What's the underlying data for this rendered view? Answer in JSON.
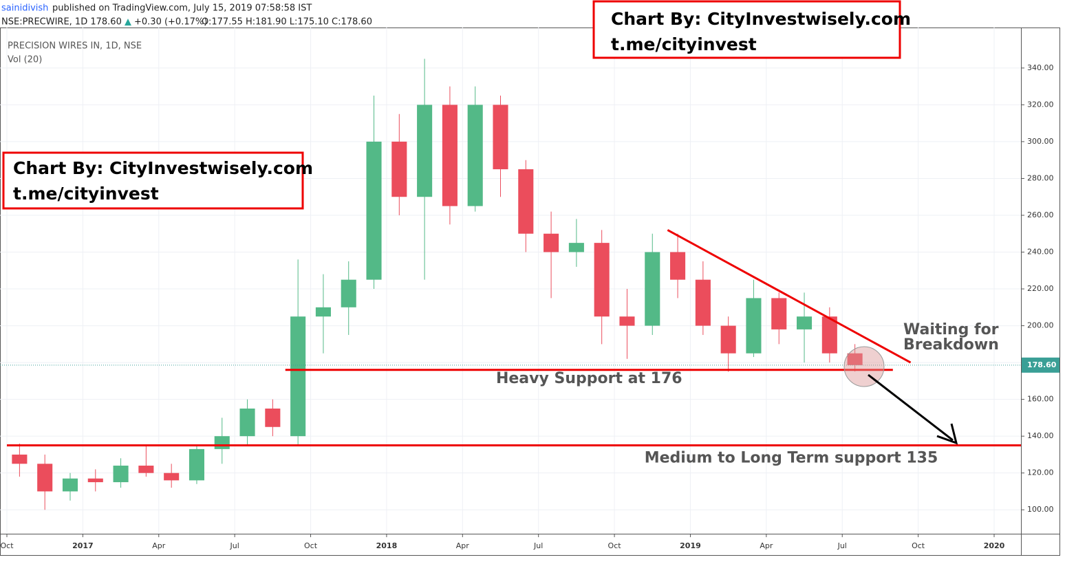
{
  "header": {
    "user": "sainidivish",
    "published": "published on TradingView.com, July 15, 2019 07:58:58 IST",
    "quote": "NSE:PRECWIRE, 1D  178.60",
    "change": "+0.30 (+0.17%)",
    "ohlc": "O:177.55  H:181.90  L:175.10  C:178.60"
  },
  "chart_data": {
    "type": "candlestick",
    "title": "PRECISION WIRES IN, 1D, NSE",
    "subtitle": "Vol (20)",
    "x": [
      "2016-10",
      "2016-11",
      "2016-12",
      "2017-01",
      "2017-02",
      "2017-03",
      "2017-04",
      "2017-05",
      "2017-06",
      "2017-07",
      "2017-08",
      "2017-09",
      "2017-10",
      "2017-11",
      "2017-12",
      "2018-01",
      "2018-02",
      "2018-03",
      "2018-04",
      "2018-05",
      "2018-06",
      "2018-07",
      "2018-08",
      "2018-09",
      "2018-10",
      "2018-11",
      "2018-12",
      "2019-01",
      "2019-02",
      "2019-03",
      "2019-04",
      "2019-05",
      "2019-06",
      "2019-07"
    ],
    "open": [
      130,
      125,
      110,
      117,
      115,
      124,
      120,
      116,
      133,
      140,
      155,
      140,
      205,
      210,
      225,
      300,
      270,
      320,
      265,
      320,
      285,
      250,
      240,
      245,
      205,
      200,
      240,
      225,
      200,
      185,
      215,
      198,
      205,
      185
    ],
    "high": [
      136,
      130,
      120,
      122,
      128,
      135,
      125,
      135,
      150,
      160,
      160,
      236,
      228,
      235,
      325,
      315,
      345,
      330,
      330,
      325,
      290,
      262,
      258,
      252,
      220,
      250,
      250,
      235,
      205,
      225,
      218,
      218,
      210,
      190
    ],
    "low": [
      118,
      100,
      105,
      110,
      112,
      118,
      112,
      114,
      125,
      135,
      140,
      135,
      185,
      195,
      220,
      260,
      225,
      255,
      262,
      270,
      240,
      215,
      232,
      190,
      182,
      195,
      215,
      195,
      175,
      183,
      190,
      180,
      180,
      175.1
    ],
    "close": [
      125,
      110,
      117,
      115,
      124,
      120,
      116,
      133,
      140,
      155,
      145,
      205,
      210,
      225,
      300,
      270,
      320,
      265,
      320,
      285,
      250,
      240,
      245,
      205,
      200,
      240,
      225,
      200,
      185,
      215,
      198,
      205,
      185,
      178.6
    ],
    "up_color": "#53b987",
    "down_color": "#eb4d5c",
    "xlim": [
      "2016-10",
      "2020-01"
    ],
    "xticks": [
      {
        "value": "2016-10",
        "label": "Oct"
      },
      {
        "value": "2017-01",
        "label": "2017"
      },
      {
        "value": "2017-04",
        "label": "Apr"
      },
      {
        "value": "2017-07",
        "label": "Jul"
      },
      {
        "value": "2017-10",
        "label": "Oct"
      },
      {
        "value": "2018-01",
        "label": "2018"
      },
      {
        "value": "2018-04",
        "label": "Apr"
      },
      {
        "value": "2018-07",
        "label": "Jul"
      },
      {
        "value": "2018-10",
        "label": "Oct"
      },
      {
        "value": "2019-01",
        "label": "2019"
      },
      {
        "value": "2019-04",
        "label": "Apr"
      },
      {
        "value": "2019-07",
        "label": "Jul"
      },
      {
        "value": "2019-10",
        "label": "Oct"
      },
      {
        "value": "2020-01",
        "label": "2020"
      }
    ],
    "ylim": [
      87,
      362
    ],
    "yticks": [
      {
        "value": 100,
        "label": "100.00"
      },
      {
        "value": 120,
        "label": "120.00"
      },
      {
        "value": 140,
        "label": "140.00"
      },
      {
        "value": 160,
        "label": "160.00"
      },
      {
        "value": 180,
        "label": "180.00"
      },
      {
        "value": 200,
        "label": "200.00"
      },
      {
        "value": 220,
        "label": "220.00"
      },
      {
        "value": 240,
        "label": "240.00"
      },
      {
        "value": 260,
        "label": "260.00"
      },
      {
        "value": 280,
        "label": "280.00"
      },
      {
        "value": 300,
        "label": "300.00"
      },
      {
        "value": 320,
        "label": "320.00"
      },
      {
        "value": 340,
        "label": "340.00"
      }
    ],
    "last_price": {
      "value": 178.6,
      "label": "178.60"
    },
    "grid": true,
    "support_lines": [
      {
        "value": 176,
        "start": "2017-09",
        "end": "2019-09",
        "label": "Heavy Support at 176"
      },
      {
        "value": 135,
        "start": "2016-10",
        "end": "2020-03",
        "label": "Medium to Long Term support 135"
      }
    ],
    "trendline": {
      "start": "2018-12",
      "start_value": 252,
      "end": "2019-09",
      "end_value": 180
    },
    "annotation": [
      "Waiting for",
      "Breakdown"
    ]
  },
  "watermark": [
    "Chart By: CityInvestwisely.com",
    "t.me/cityinvest"
  ]
}
